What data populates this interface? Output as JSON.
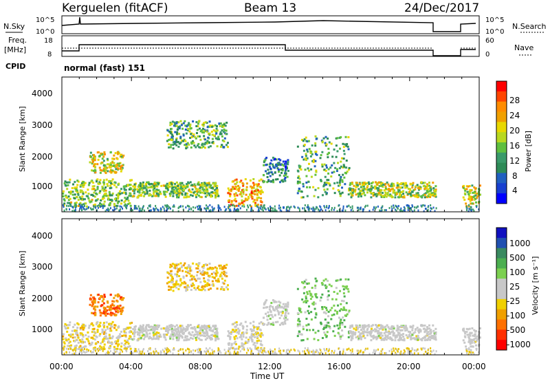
{
  "header": {
    "radar": "Kerguelen (fitACF)",
    "beam": "Beam 13",
    "date": "24/Dec/2017"
  },
  "noise_panel": {
    "left_label": "N.Sky",
    "left_ticks": [
      "10^5",
      "10^0"
    ],
    "right_ticks": [
      "10^5",
      "10^0"
    ],
    "right_label": "N.Search"
  },
  "freq_panel": {
    "left_label_1": "Freq.",
    "left_label_2": "[MHz]",
    "left_ticks": [
      "18",
      "8"
    ],
    "right_ticks": [
      "60",
      "0"
    ],
    "right_label": "Nave"
  },
  "cpid": {
    "label": "CPID",
    "value": "normal (fast) 151"
  },
  "x_axis": {
    "ticks": [
      "00:00",
      "04:00",
      "08:00",
      "12:00",
      "16:00",
      "20:00",
      "00:00"
    ],
    "label": "Time UT"
  },
  "power_panel": {
    "ylabel": "Slant Range [km]",
    "yticks": [
      "4000",
      "3000",
      "2000",
      "1000"
    ],
    "cbar_label": "Power [dB]",
    "cbar_ticks": [
      "28",
      "24",
      "20",
      "16",
      "12",
      "8",
      "4"
    ],
    "cbar_colors": [
      "#ff0000",
      "#ff4500",
      "#ff8c00",
      "#f0a000",
      "#e8d800",
      "#b8d820",
      "#5fbf3f",
      "#3a9a6a",
      "#2e8b57",
      "#2060c0",
      "#1840d0",
      "#0000ff"
    ]
  },
  "velocity_panel": {
    "ylabel": "Slant Range [km]",
    "yticks": [
      "4000",
      "3000",
      "2000",
      "1000"
    ],
    "cbar_label": "Velocity [m s⁻¹]",
    "cbar_ticks": [
      "1000",
      "500",
      "100",
      "25",
      "-25",
      "-100",
      "-500",
      "-1000"
    ],
    "cbar_colors": [
      "#1010c0",
      "#2050b0",
      "#3a8a60",
      "#4caf50",
      "#7cd050",
      "#c8c8c8",
      "#c8c8c8",
      "#f0d000",
      "#f0a000",
      "#ff7000",
      "#ff3000",
      "#ff0000"
    ]
  },
  "chart_data": {
    "type": "heatmap",
    "title": "Kerguelen (fitACF) Beam 13 24/Dec/2017",
    "xlabel": "Time UT",
    "ylabel": "Slant Range [km]",
    "xlim": [
      "00:00",
      "24:00"
    ],
    "ylim": [
      200,
      4600
    ],
    "data_gap": [
      "21:30",
      "23:00"
    ],
    "power_range_db": [
      0,
      30
    ],
    "velocity_range_ms": [
      -1000,
      1000
    ],
    "echo_regions": [
      {
        "t": [
          0.0,
          4.0
        ],
        "range_km": [
          400,
          1300
        ],
        "power_db": 14,
        "velocity_ms": -200
      },
      {
        "t": [
          1.5,
          3.5
        ],
        "range_km": [
          1500,
          2200
        ],
        "power_db": 18,
        "velocity_ms": -600
      },
      {
        "t": [
          4.0,
          9.0
        ],
        "range_km": [
          700,
          1200
        ],
        "power_db": 14,
        "velocity_ms": 0
      },
      {
        "t": [
          6.0,
          9.5
        ],
        "range_km": [
          2300,
          3200
        ],
        "power_db": 12,
        "velocity_ms": -300
      },
      {
        "t": [
          9.5,
          11.5
        ],
        "range_km": [
          400,
          1300
        ],
        "power_db": 22,
        "velocity_ms": -50
      },
      {
        "t": [
          11.5,
          13.0
        ],
        "range_km": [
          1200,
          2000
        ],
        "power_db": 8,
        "velocity_ms": 0
      },
      {
        "t": [
          13.5,
          16.5
        ],
        "range_km": [
          700,
          2700
        ],
        "power_db": 12,
        "velocity_ms": 300
      },
      {
        "t": [
          16.5,
          21.5
        ],
        "range_km": [
          700,
          1200
        ],
        "power_db": 16,
        "velocity_ms": 0
      },
      {
        "t": [
          23.0,
          24.0
        ],
        "range_km": [
          400,
          1100
        ],
        "power_db": 18,
        "velocity_ms": 0
      }
    ]
  }
}
